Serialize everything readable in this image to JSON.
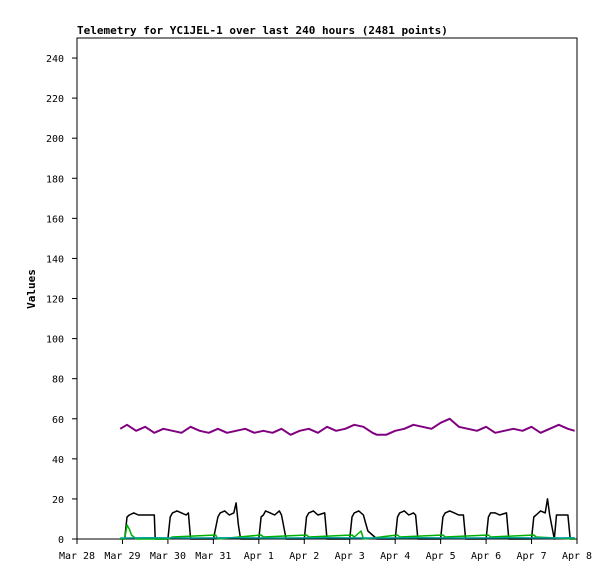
{
  "chart_data": {
    "type": "line",
    "title": "Telemetry for YC1JEL-1 over last 240 hours (2481 points)",
    "xlabel": "",
    "ylabel": "Values",
    "x_ticks": [
      "Mar 28",
      "Mar 29",
      "Mar 30",
      "Mar 31",
      "Apr 1",
      "Apr 2",
      "Apr 3",
      "Apr 4",
      "Apr 5",
      "Apr 6",
      "Apr 7",
      "Apr 8"
    ],
    "xlim": [
      0,
      11
    ],
    "ylim": [
      0,
      250
    ],
    "y_ticks": [
      0,
      20,
      40,
      60,
      80,
      100,
      120,
      140,
      160,
      180,
      200,
      220,
      240
    ],
    "grid": false,
    "legend": "none",
    "points_count": 2481,
    "series": [
      {
        "color": "#800080",
        "x": [
          0.95,
          1.1,
          1.3,
          1.5,
          1.7,
          1.9,
          2.1,
          2.3,
          2.5,
          2.7,
          2.9,
          3.1,
          3.3,
          3.5,
          3.7,
          3.9,
          4.1,
          4.3,
          4.5,
          4.7,
          4.9,
          5.1,
          5.3,
          5.5,
          5.7,
          5.9,
          6.1,
          6.3,
          6.5,
          6.6,
          6.8,
          7.0,
          7.2,
          7.4,
          7.6,
          7.8,
          8.0,
          8.2,
          8.4,
          8.6,
          8.8,
          9.0,
          9.2,
          9.4,
          9.6,
          9.8,
          10.0,
          10.2,
          10.4,
          10.6,
          10.8,
          10.95
        ],
        "y": [
          55,
          57,
          54,
          56,
          53,
          55,
          54,
          53,
          56,
          54,
          53,
          55,
          53,
          54,
          55,
          53,
          54,
          53,
          55,
          52,
          54,
          55,
          53,
          56,
          54,
          55,
          57,
          56,
          53,
          52,
          52,
          54,
          55,
          57,
          56,
          55,
          58,
          60,
          56,
          55,
          54,
          56,
          53,
          54,
          55,
          54,
          56,
          53,
          55,
          57,
          55,
          54
        ]
      },
      {
        "color": "#000000",
        "x": [
          0.95,
          1.0,
          1.05,
          1.1,
          1.15,
          1.25,
          1.35,
          1.55,
          1.7,
          1.72,
          2.0,
          2.05,
          2.1,
          2.2,
          2.3,
          2.4,
          2.45,
          2.5,
          2.55,
          2.85,
          3.0,
          3.1,
          3.15,
          3.25,
          3.35,
          3.45,
          3.5,
          3.55,
          3.6,
          3.7,
          3.8,
          3.85,
          4.0,
          4.05,
          4.1,
          4.15,
          4.25,
          4.35,
          4.45,
          4.5,
          4.6,
          4.9,
          5.0,
          5.05,
          5.1,
          5.2,
          5.3,
          5.45,
          5.5,
          5.55,
          5.9,
          6.0,
          6.05,
          6.1,
          6.2,
          6.3,
          6.35,
          6.4,
          6.6,
          6.7,
          6.85,
          7.0,
          7.05,
          7.1,
          7.2,
          7.3,
          7.4,
          7.45,
          7.5,
          7.55,
          7.9,
          8.0,
          8.05,
          8.1,
          8.2,
          8.3,
          8.4,
          8.5,
          8.55,
          8.6,
          8.9,
          9.0,
          9.05,
          9.1,
          9.2,
          9.3,
          9.45,
          9.5,
          9.55,
          9.9,
          10.0,
          10.05,
          10.1,
          10.2,
          10.3,
          10.35,
          10.4,
          10.5,
          10.55,
          10.8,
          10.85,
          10.95
        ],
        "y": [
          0,
          0,
          0,
          11,
          12,
          13,
          12,
          12,
          12,
          0,
          0,
          11,
          13,
          14,
          13,
          12,
          13,
          0,
          0,
          0,
          0,
          11,
          13,
          14,
          12,
          13,
          18,
          7,
          0,
          0,
          0,
          0,
          0,
          11,
          12,
          14,
          13,
          12,
          14,
          12,
          0,
          0,
          0,
          11,
          13,
          14,
          12,
          13,
          0,
          0,
          0,
          0,
          11,
          13,
          14,
          12,
          8,
          4,
          0,
          0,
          0,
          0,
          11,
          13,
          14,
          12,
          13,
          12,
          0,
          0,
          0,
          0,
          11,
          13,
          14,
          13,
          12,
          12,
          0,
          0,
          0,
          0,
          11,
          13,
          13,
          12,
          13,
          0,
          0,
          0,
          0,
          11,
          12,
          14,
          13,
          20,
          12,
          0,
          12,
          12,
          0,
          0
        ]
      },
      {
        "color": "#00b000",
        "x": [
          0.95,
          1.05,
          1.1,
          1.15,
          1.2,
          1.3,
          2.0,
          2.1,
          3.05,
          3.1,
          4.05,
          4.1,
          5.05,
          5.1,
          6.05,
          6.1,
          6.25,
          6.3,
          7.05,
          7.1,
          8.05,
          8.1,
          9.05,
          9.1,
          10.05,
          10.1,
          10.95
        ],
        "y": [
          0,
          0,
          7,
          5,
          2,
          0,
          0,
          1,
          2,
          0,
          2,
          1,
          2,
          1,
          2,
          1,
          4,
          0,
          2,
          1,
          2,
          1,
          2,
          1,
          2,
          1,
          0
        ]
      },
      {
        "color": "#00a0a0",
        "x": [
          0.95,
          1.5,
          2.5,
          3.5,
          4.5,
          5.5,
          6.5,
          7.5,
          8.5,
          9.5,
          10.5,
          10.95
        ],
        "y": [
          0.5,
          0.6,
          0.5,
          0.6,
          0.5,
          0.6,
          0.5,
          0.6,
          0.5,
          0.6,
          0.5,
          0.6
        ]
      }
    ]
  }
}
